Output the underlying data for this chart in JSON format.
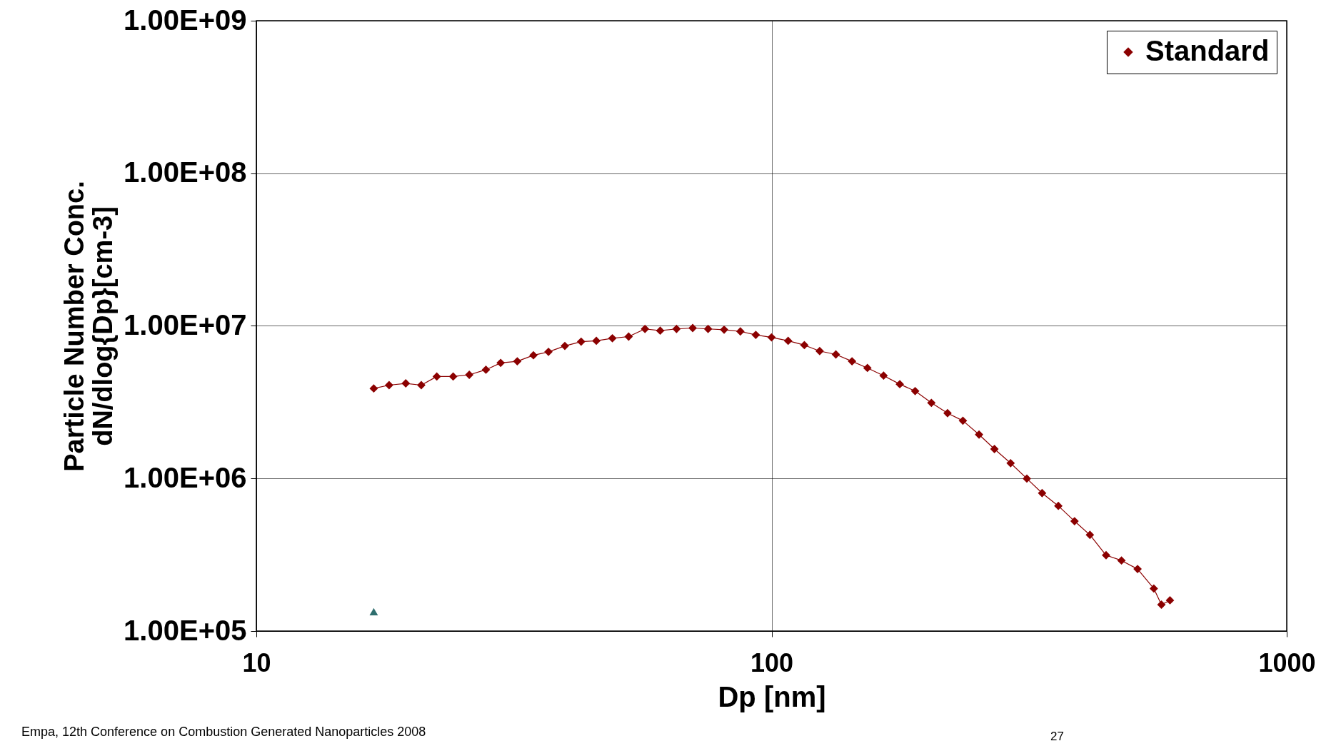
{
  "chart_data": {
    "type": "line",
    "xlabel": "Dp [nm]",
    "ylabel": "Particle Number Conc.\ndN/dlog{Dp}[cm-3]",
    "log": "xy",
    "grid": true,
    "legend": "top right",
    "xlim": [
      10,
      1000
    ],
    "xticks": [
      10,
      100,
      1000
    ],
    "ylim": [
      100000,
      1000000000
    ],
    "yticks": [
      {
        "value": 100000,
        "label": "1.00E+05"
      },
      {
        "value": 1000000,
        "label": "1.00E+06"
      },
      {
        "value": 10000000,
        "label": "1.00E+07"
      },
      {
        "value": 100000000,
        "label": "1.00E+08"
      },
      {
        "value": 1000000000,
        "label": "1.00E+09"
      }
    ],
    "series": [
      {
        "name": "Standard",
        "marker": "diamond",
        "line_style": "solid",
        "color": "#8b0000",
        "x": [
          16.9,
          18.1,
          19.5,
          20.9,
          22.4,
          24.1,
          25.9,
          27.9,
          29.8,
          32.1,
          34.5,
          36.9,
          39.7,
          42.7,
          45.7,
          49.1,
          52.8,
          56.8,
          60.8,
          65.4,
          70.3,
          75.3,
          80.9,
          87.0,
          93.2,
          100,
          107.7,
          115.8,
          124.0,
          133.3,
          143.3,
          153.5,
          165.0,
          177.4,
          190.0,
          204.3,
          219.6,
          235.2,
          252.8,
          270.8,
          291.1,
          313.0,
          335.1,
          360.3,
          387.4,
          414.9,
          446.0,
          477.8,
          513.4,
          552.1,
          571.2,
          593.4
        ],
        "values": [
          3890000,
          4090000,
          4200000,
          4090000,
          4660000,
          4660000,
          4780000,
          5160000,
          5720000,
          5860000,
          6420000,
          6760000,
          7390000,
          7880000,
          7980000,
          8300000,
          8510000,
          9550000,
          9310000,
          9550000,
          9680000,
          9550000,
          9440000,
          9200000,
          8730000,
          8410000,
          7980000,
          7480000,
          6840000,
          6500000,
          5860000,
          5300000,
          4720000,
          4150000,
          3740000,
          3130000,
          2680000,
          2390000,
          1940000,
          1560000,
          1260000,
          998000,
          802000,
          661000,
          525000,
          427000,
          314000,
          290000,
          255000,
          190000,
          149000,
          159000
        ]
      },
      {
        "type": "scatter",
        "marker": "triangle",
        "color": "#2e6e6e",
        "x": [
          16.9
        ],
        "values": [
          134000
        ]
      }
    ],
    "annotations": [
      "Empa, 12th Conference on Combustion Generated Nanoparticles 2008",
      "27"
    ]
  }
}
